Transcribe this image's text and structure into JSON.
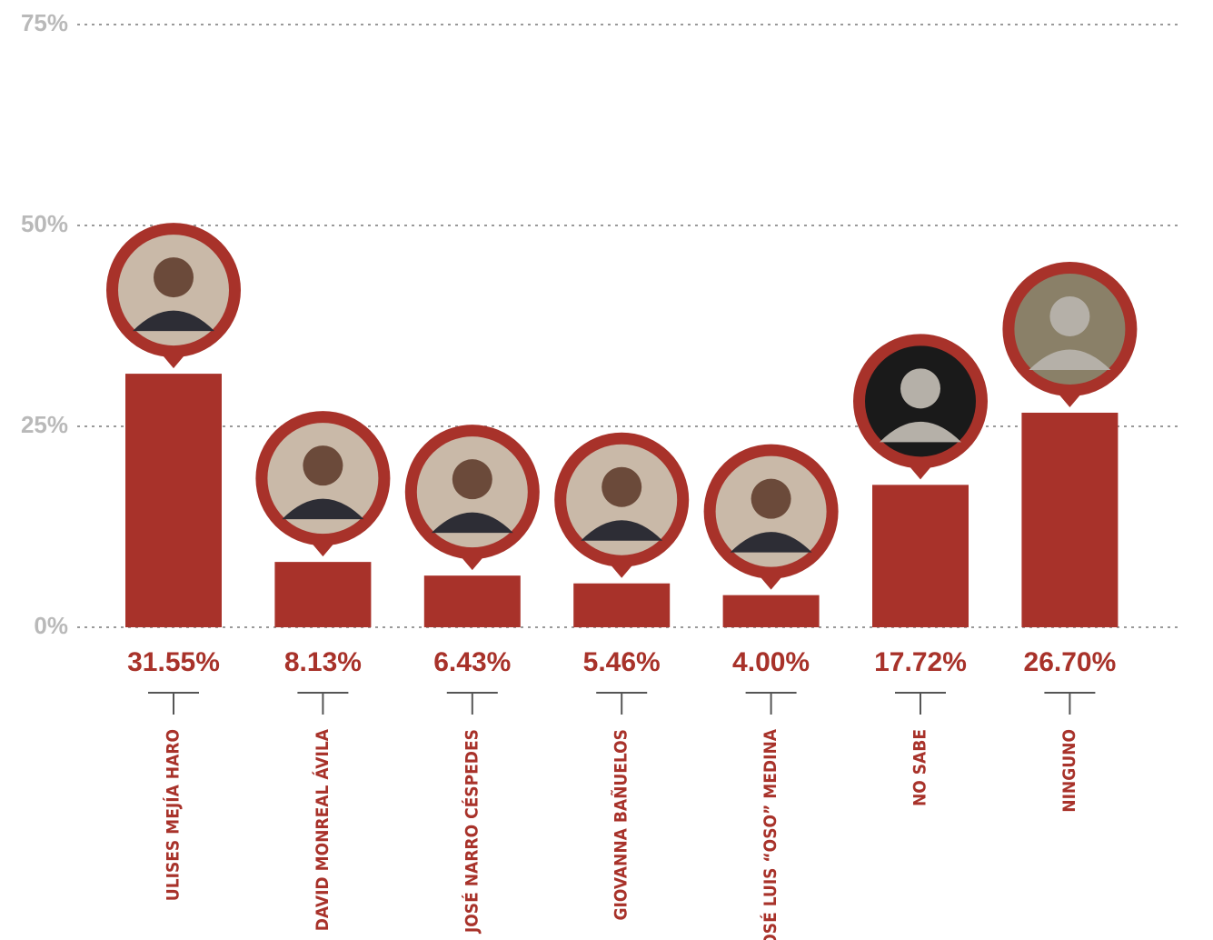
{
  "chart_data": {
    "type": "bar",
    "categories": [
      "ULISES MEJÍA HARO",
      "DAVID MONREAL ÁVILA",
      "JOSÉ NARRO CÉSPEDES",
      "GIOVANNA BAÑUELOS",
      "JOSÉ LUIS “OSO” MEDINA",
      "NO SABE",
      "NINGUNO"
    ],
    "values": [
      31.55,
      8.13,
      6.43,
      5.46,
      4.0,
      17.72,
      26.7
    ],
    "value_labels": [
      "31.55%",
      "8.13%",
      "6.43%",
      "5.46%",
      "4.00%",
      "17.72%",
      "26.70%"
    ],
    "color": "#a8322a",
    "ylim": [
      0,
      75
    ],
    "yticks": [
      {
        "value": 0,
        "label": "0%"
      },
      {
        "value": 25,
        "label": "25%"
      },
      {
        "value": 50,
        "label": "50%"
      },
      {
        "value": 75,
        "label": "75%"
      }
    ],
    "grid": true
  }
}
